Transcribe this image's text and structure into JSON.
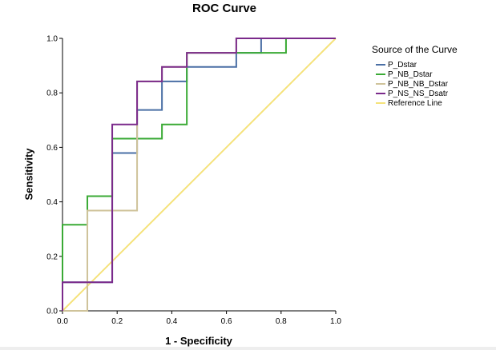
{
  "chart_data": {
    "type": "line",
    "title": "ROC Curve",
    "xlabel": "1 - Specificity",
    "ylabel": "Sensitivity",
    "xlim": [
      0,
      1
    ],
    "ylim": [
      0,
      1
    ],
    "x_ticks": [
      "0.0",
      "0.2",
      "0.4",
      "0.6",
      "0.8",
      "1.0"
    ],
    "y_ticks": [
      "0.0",
      "0.2",
      "0.4",
      "0.6",
      "0.8",
      "1.0"
    ],
    "legend_title": "Source of the Curve",
    "legend_position": "right",
    "series": [
      {
        "name": "P_Dstar",
        "color": "#4a6fa5",
        "points": [
          [
            0,
            0
          ],
          [
            0,
            0.105
          ],
          [
            0.182,
            0.105
          ],
          [
            0.182,
            0.579
          ],
          [
            0.273,
            0.579
          ],
          [
            0.273,
            0.737
          ],
          [
            0.364,
            0.737
          ],
          [
            0.364,
            0.842
          ],
          [
            0.455,
            0.842
          ],
          [
            0.455,
            0.895
          ],
          [
            0.636,
            0.895
          ],
          [
            0.636,
            0.947
          ],
          [
            0.727,
            0.947
          ],
          [
            0.727,
            1
          ],
          [
            1,
            1
          ]
        ]
      },
      {
        "name": "P_NB_Dstar",
        "color": "#3aaa35",
        "points": [
          [
            0,
            0
          ],
          [
            0,
            0.316
          ],
          [
            0.091,
            0.316
          ],
          [
            0.091,
            0.421
          ],
          [
            0.182,
            0.421
          ],
          [
            0.182,
            0.632
          ],
          [
            0.364,
            0.632
          ],
          [
            0.364,
            0.684
          ],
          [
            0.455,
            0.684
          ],
          [
            0.455,
            0.947
          ],
          [
            0.818,
            0.947
          ],
          [
            0.818,
            1
          ],
          [
            1,
            1
          ]
        ]
      },
      {
        "name": "P_NB_NB_Dstar",
        "color": "#cfc39a",
        "points": [
          [
            0,
            0
          ],
          [
            0.091,
            0
          ],
          [
            0.091,
            0.368
          ],
          [
            0.273,
            0.368
          ],
          [
            0.273,
            0.842
          ],
          [
            0.364,
            0.842
          ],
          [
            0.364,
            0.895
          ],
          [
            0.455,
            0.895
          ],
          [
            0.455,
            0.947
          ],
          [
            0.636,
            0.947
          ],
          [
            0.636,
            1
          ],
          [
            1,
            1
          ]
        ]
      },
      {
        "name": "P_NS_NS_Dsatr",
        "color": "#7b2a8b",
        "points": [
          [
            0,
            0
          ],
          [
            0,
            0.105
          ],
          [
            0.182,
            0.105
          ],
          [
            0.182,
            0.684
          ],
          [
            0.273,
            0.684
          ],
          [
            0.273,
            0.842
          ],
          [
            0.364,
            0.842
          ],
          [
            0.364,
            0.895
          ],
          [
            0.455,
            0.895
          ],
          [
            0.455,
            0.947
          ],
          [
            0.636,
            0.947
          ],
          [
            0.636,
            1
          ],
          [
            1,
            1
          ]
        ]
      },
      {
        "name": "Reference Line",
        "color": "#f5e27a",
        "points": [
          [
            0,
            0
          ],
          [
            1,
            1
          ]
        ]
      }
    ]
  }
}
